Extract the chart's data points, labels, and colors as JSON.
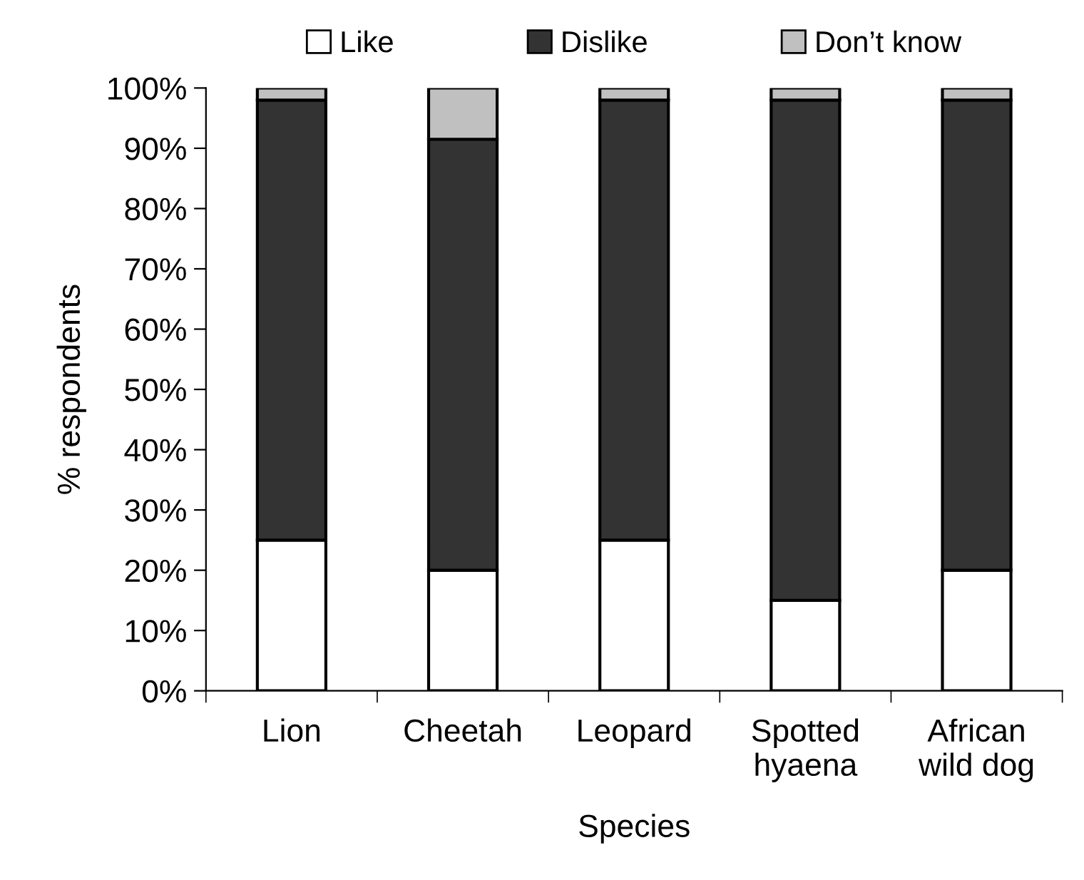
{
  "chart_data": {
    "type": "bar",
    "stacked": true,
    "xlabel": "Species",
    "ylabel": "% respondents",
    "categories": [
      "Lion",
      "Cheetah",
      "Leopard",
      "Spotted\nhyaena",
      "African\nwild dog"
    ],
    "series": [
      {
        "name": "Like",
        "color": "#ffffff",
        "values": [
          25,
          20,
          25,
          15,
          20
        ]
      },
      {
        "name": "Dislike",
        "color": "#333333",
        "values": [
          73,
          71.5,
          73,
          83,
          78
        ]
      },
      {
        "name": "Don’t know",
        "color": "#c0c0c0",
        "values": [
          2,
          8.5,
          2,
          2,
          2
        ]
      }
    ],
    "ylim": [
      0,
      100
    ],
    "yticks": [
      {
        "value": 0,
        "label": "0%"
      },
      {
        "value": 10,
        "label": "10%"
      },
      {
        "value": 20,
        "label": "20%"
      },
      {
        "value": 30,
        "label": "30%"
      },
      {
        "value": 40,
        "label": "40%"
      },
      {
        "value": 50,
        "label": "50%"
      },
      {
        "value": 60,
        "label": "60%"
      },
      {
        "value": 70,
        "label": "70%"
      },
      {
        "value": 80,
        "label": "80%"
      },
      {
        "value": 90,
        "label": "90%"
      },
      {
        "value": 100,
        "label": "100%"
      }
    ],
    "legend": "top",
    "grid": false
  }
}
